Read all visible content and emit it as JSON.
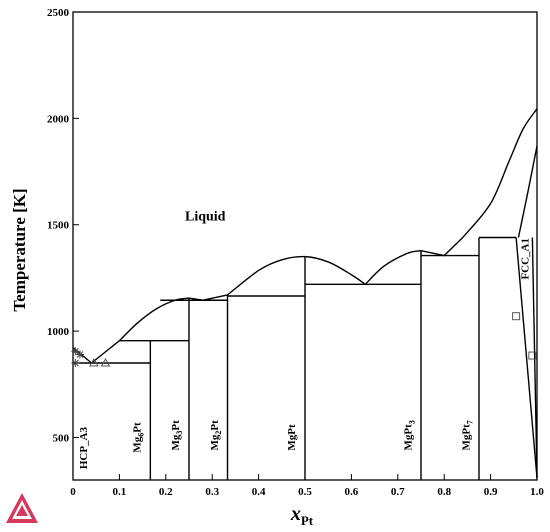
{
  "chart_data": {
    "type": "line",
    "title": "",
    "xlabel": "x",
    "xlabel_sub": "Pt",
    "ylabel": "Temperature [K]",
    "xlim": [
      0,
      1.0
    ],
    "ylim": [
      300,
      2500
    ],
    "x_ticks": [
      {
        "value": 0,
        "label": "0"
      },
      {
        "value": 0.1,
        "label": "0.1"
      },
      {
        "value": 0.2,
        "label": "0.2"
      },
      {
        "value": 0.3,
        "label": "0.3"
      },
      {
        "value": 0.4,
        "label": "0.4"
      },
      {
        "value": 0.5,
        "label": "0.5"
      },
      {
        "value": 0.6,
        "label": "0.6"
      },
      {
        "value": 0.7,
        "label": "0.7"
      },
      {
        "value": 0.8,
        "label": "0.8"
      },
      {
        "value": 0.9,
        "label": "0.9"
      },
      {
        "value": 1.0,
        "label": "1.0"
      }
    ],
    "y_ticks": [
      {
        "value": 500,
        "label": "500"
      },
      {
        "value": 1000,
        "label": "1000"
      },
      {
        "value": 1500,
        "label": "1500"
      },
      {
        "value": 2000,
        "label": "2000"
      },
      {
        "value": 2500,
        "label": "2500"
      }
    ],
    "grid": false,
    "liquidus_segments": [
      [
        [
          0.0,
          922
        ],
        [
          0.04,
          850
        ]
      ],
      [
        [
          0.04,
          850
        ],
        [
          0.1,
          955
        ]
      ],
      [
        [
          0.1,
          955
        ],
        [
          0.14,
          1040
        ],
        [
          0.18,
          1105
        ],
        [
          0.22,
          1145
        ],
        [
          0.25,
          1155
        ]
      ],
      [
        [
          0.25,
          1155
        ],
        [
          0.28,
          1145
        ]
      ],
      [
        [
          0.28,
          1145
        ],
        [
          0.333,
          1170
        ]
      ],
      [
        [
          0.333,
          1170
        ],
        [
          0.4,
          1285
        ],
        [
          0.45,
          1335
        ],
        [
          0.5,
          1350
        ],
        [
          0.55,
          1325
        ],
        [
          0.6,
          1265
        ],
        [
          0.63,
          1220
        ]
      ],
      [
        [
          0.63,
          1220
        ],
        [
          0.67,
          1305
        ],
        [
          0.72,
          1365
        ],
        [
          0.75,
          1378
        ]
      ],
      [
        [
          0.75,
          1378
        ],
        [
          0.8,
          1355
        ]
      ],
      [
        [
          0.8,
          1355
        ],
        [
          0.84,
          1440
        ]
      ],
      [
        [
          0.84,
          1440
        ],
        [
          0.9,
          1600
        ],
        [
          0.94,
          1800
        ],
        [
          0.97,
          1950
        ],
        [
          1.0,
          2045
        ]
      ],
      [
        [
          0.96,
          1440
        ],
        [
          0.98,
          1650
        ],
        [
          1.0,
          1870
        ]
      ]
    ],
    "phase_lines": [
      [
        [
          0.0,
          850
        ],
        [
          0.1667,
          850
        ]
      ],
      [
        [
          0.1,
          955
        ],
        [
          0.25,
          955
        ]
      ],
      [
        [
          0.188,
          1145
        ],
        [
          0.333,
          1145
        ]
      ],
      [
        [
          0.333,
          1165
        ],
        [
          0.5,
          1165
        ]
      ],
      [
        [
          0.5,
          1220
        ],
        [
          0.75,
          1220
        ]
      ],
      [
        [
          0.75,
          1355
        ],
        [
          0.875,
          1355
        ]
      ],
      [
        [
          0.875,
          1440
        ],
        [
          0.955,
          1440
        ]
      ],
      [
        [
          0.1667,
          300
        ],
        [
          0.1667,
          955
        ]
      ],
      [
        [
          0.25,
          300
        ],
        [
          0.25,
          1155
        ]
      ],
      [
        [
          0.333,
          300
        ],
        [
          0.333,
          1170
        ]
      ],
      [
        [
          0.5,
          300
        ],
        [
          0.5,
          1350
        ]
      ],
      [
        [
          0.75,
          300
        ],
        [
          0.75,
          1378
        ]
      ],
      [
        [
          0.875,
          300
        ],
        [
          0.875,
          1440
        ]
      ],
      [
        [
          0.955,
          1440
        ],
        [
          1.0,
          310
        ]
      ],
      [
        [
          0.99,
          1440
        ],
        [
          1.0,
          310
        ]
      ]
    ],
    "markers": [
      {
        "shape": "star",
        "x": 0.005,
        "y": 905
      },
      {
        "shape": "star",
        "x": 0.015,
        "y": 890
      },
      {
        "shape": "star",
        "x": 0.005,
        "y": 850
      },
      {
        "shape": "triangle",
        "x": 0.07,
        "y": 850
      },
      {
        "shape": "triangle",
        "x": 0.045,
        "y": 850
      },
      {
        "shape": "square",
        "x": 0.955,
        "y": 1070
      },
      {
        "shape": "square",
        "x": 0.99,
        "y": 885
      }
    ],
    "region_labels": [
      {
        "label": "Liquid",
        "x": 0.285,
        "y": 1520,
        "rotate": false
      },
      {
        "label": "FCC_A1",
        "x": 0.982,
        "y": 1340,
        "rotate": true
      }
    ],
    "compound_labels": [
      {
        "base": "HCP_A3",
        "sub": "",
        "tail": "",
        "x": 0.03,
        "y": 450
      },
      {
        "base": "Mg",
        "sub": "6",
        "tail": "Pt",
        "x": 0.145,
        "y": 500
      },
      {
        "base": "Mg",
        "sub": "3",
        "tail": "Pt",
        "x": 0.228,
        "y": 510
      },
      {
        "base": "Mg",
        "sub": "2",
        "tail": "Pt",
        "x": 0.313,
        "y": 510
      },
      {
        "base": "MgPt",
        "sub": "",
        "tail": "",
        "x": 0.478,
        "y": 500
      },
      {
        "base": "MgPt",
        "sub": "3",
        "tail": "",
        "x": 0.73,
        "y": 510
      },
      {
        "base": "MgPt",
        "sub": "7",
        "tail": "",
        "x": 0.855,
        "y": 510
      }
    ]
  }
}
